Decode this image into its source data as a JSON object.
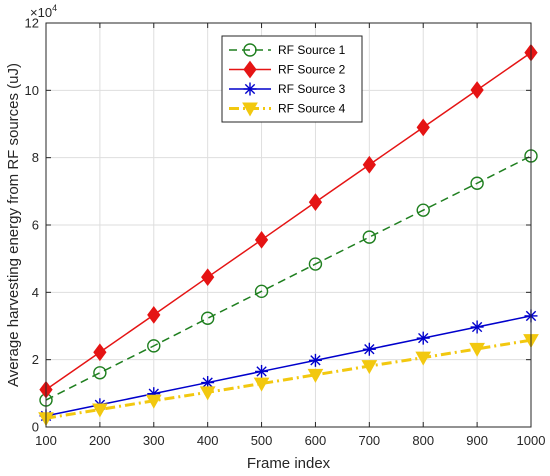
{
  "chart_data": {
    "type": "line",
    "xlabel": "Frame index",
    "ylabel": "Average harvesting energy from RF sources (uJ)",
    "y_exponent_label": "×10",
    "y_exponent_power": "4",
    "xlim": [
      100,
      1000
    ],
    "ylim": [
      0,
      120000
    ],
    "x_ticks": [
      100,
      200,
      300,
      400,
      500,
      600,
      700,
      800,
      900,
      1000
    ],
    "y_ticks": [
      0,
      20000,
      40000,
      60000,
      80000,
      100000,
      120000
    ],
    "x_tick_labels": [
      "100",
      "200",
      "300",
      "400",
      "500",
      "600",
      "700",
      "800",
      "900",
      "1000"
    ],
    "y_tick_labels": [
      "0",
      "2",
      "4",
      "6",
      "8",
      "10",
      "12"
    ],
    "grid": true,
    "legend_position": "top-center",
    "x": [
      100,
      200,
      300,
      400,
      500,
      600,
      700,
      800,
      900,
      1000
    ],
    "series": [
      {
        "name": "RF Source 1",
        "values": [
          8000,
          16100,
          24100,
          32300,
          40300,
          48400,
          56400,
          64400,
          72400,
          80500
        ],
        "color": "#1f7f1f",
        "line_style": "dashed",
        "marker": "circle"
      },
      {
        "name": "RF Source 2",
        "values": [
          11100,
          22200,
          33300,
          44500,
          55600,
          66800,
          77900,
          89000,
          100100,
          111200
        ],
        "color": "#e51414",
        "line_style": "solid",
        "marker": "diamond"
      },
      {
        "name": "RF Source 3",
        "values": [
          3300,
          6600,
          9900,
          13200,
          16500,
          19800,
          23100,
          26400,
          29700,
          33000
        ],
        "color": "#0000cc",
        "line_style": "solid",
        "marker": "asterisk"
      },
      {
        "name": "RF Source 4",
        "values": [
          2600,
          5200,
          7800,
          10300,
          12900,
          15500,
          18100,
          20600,
          23200,
          25800
        ],
        "color": "#f2c80f",
        "line_style": "dash-dot",
        "marker": "triangle-down"
      }
    ]
  }
}
